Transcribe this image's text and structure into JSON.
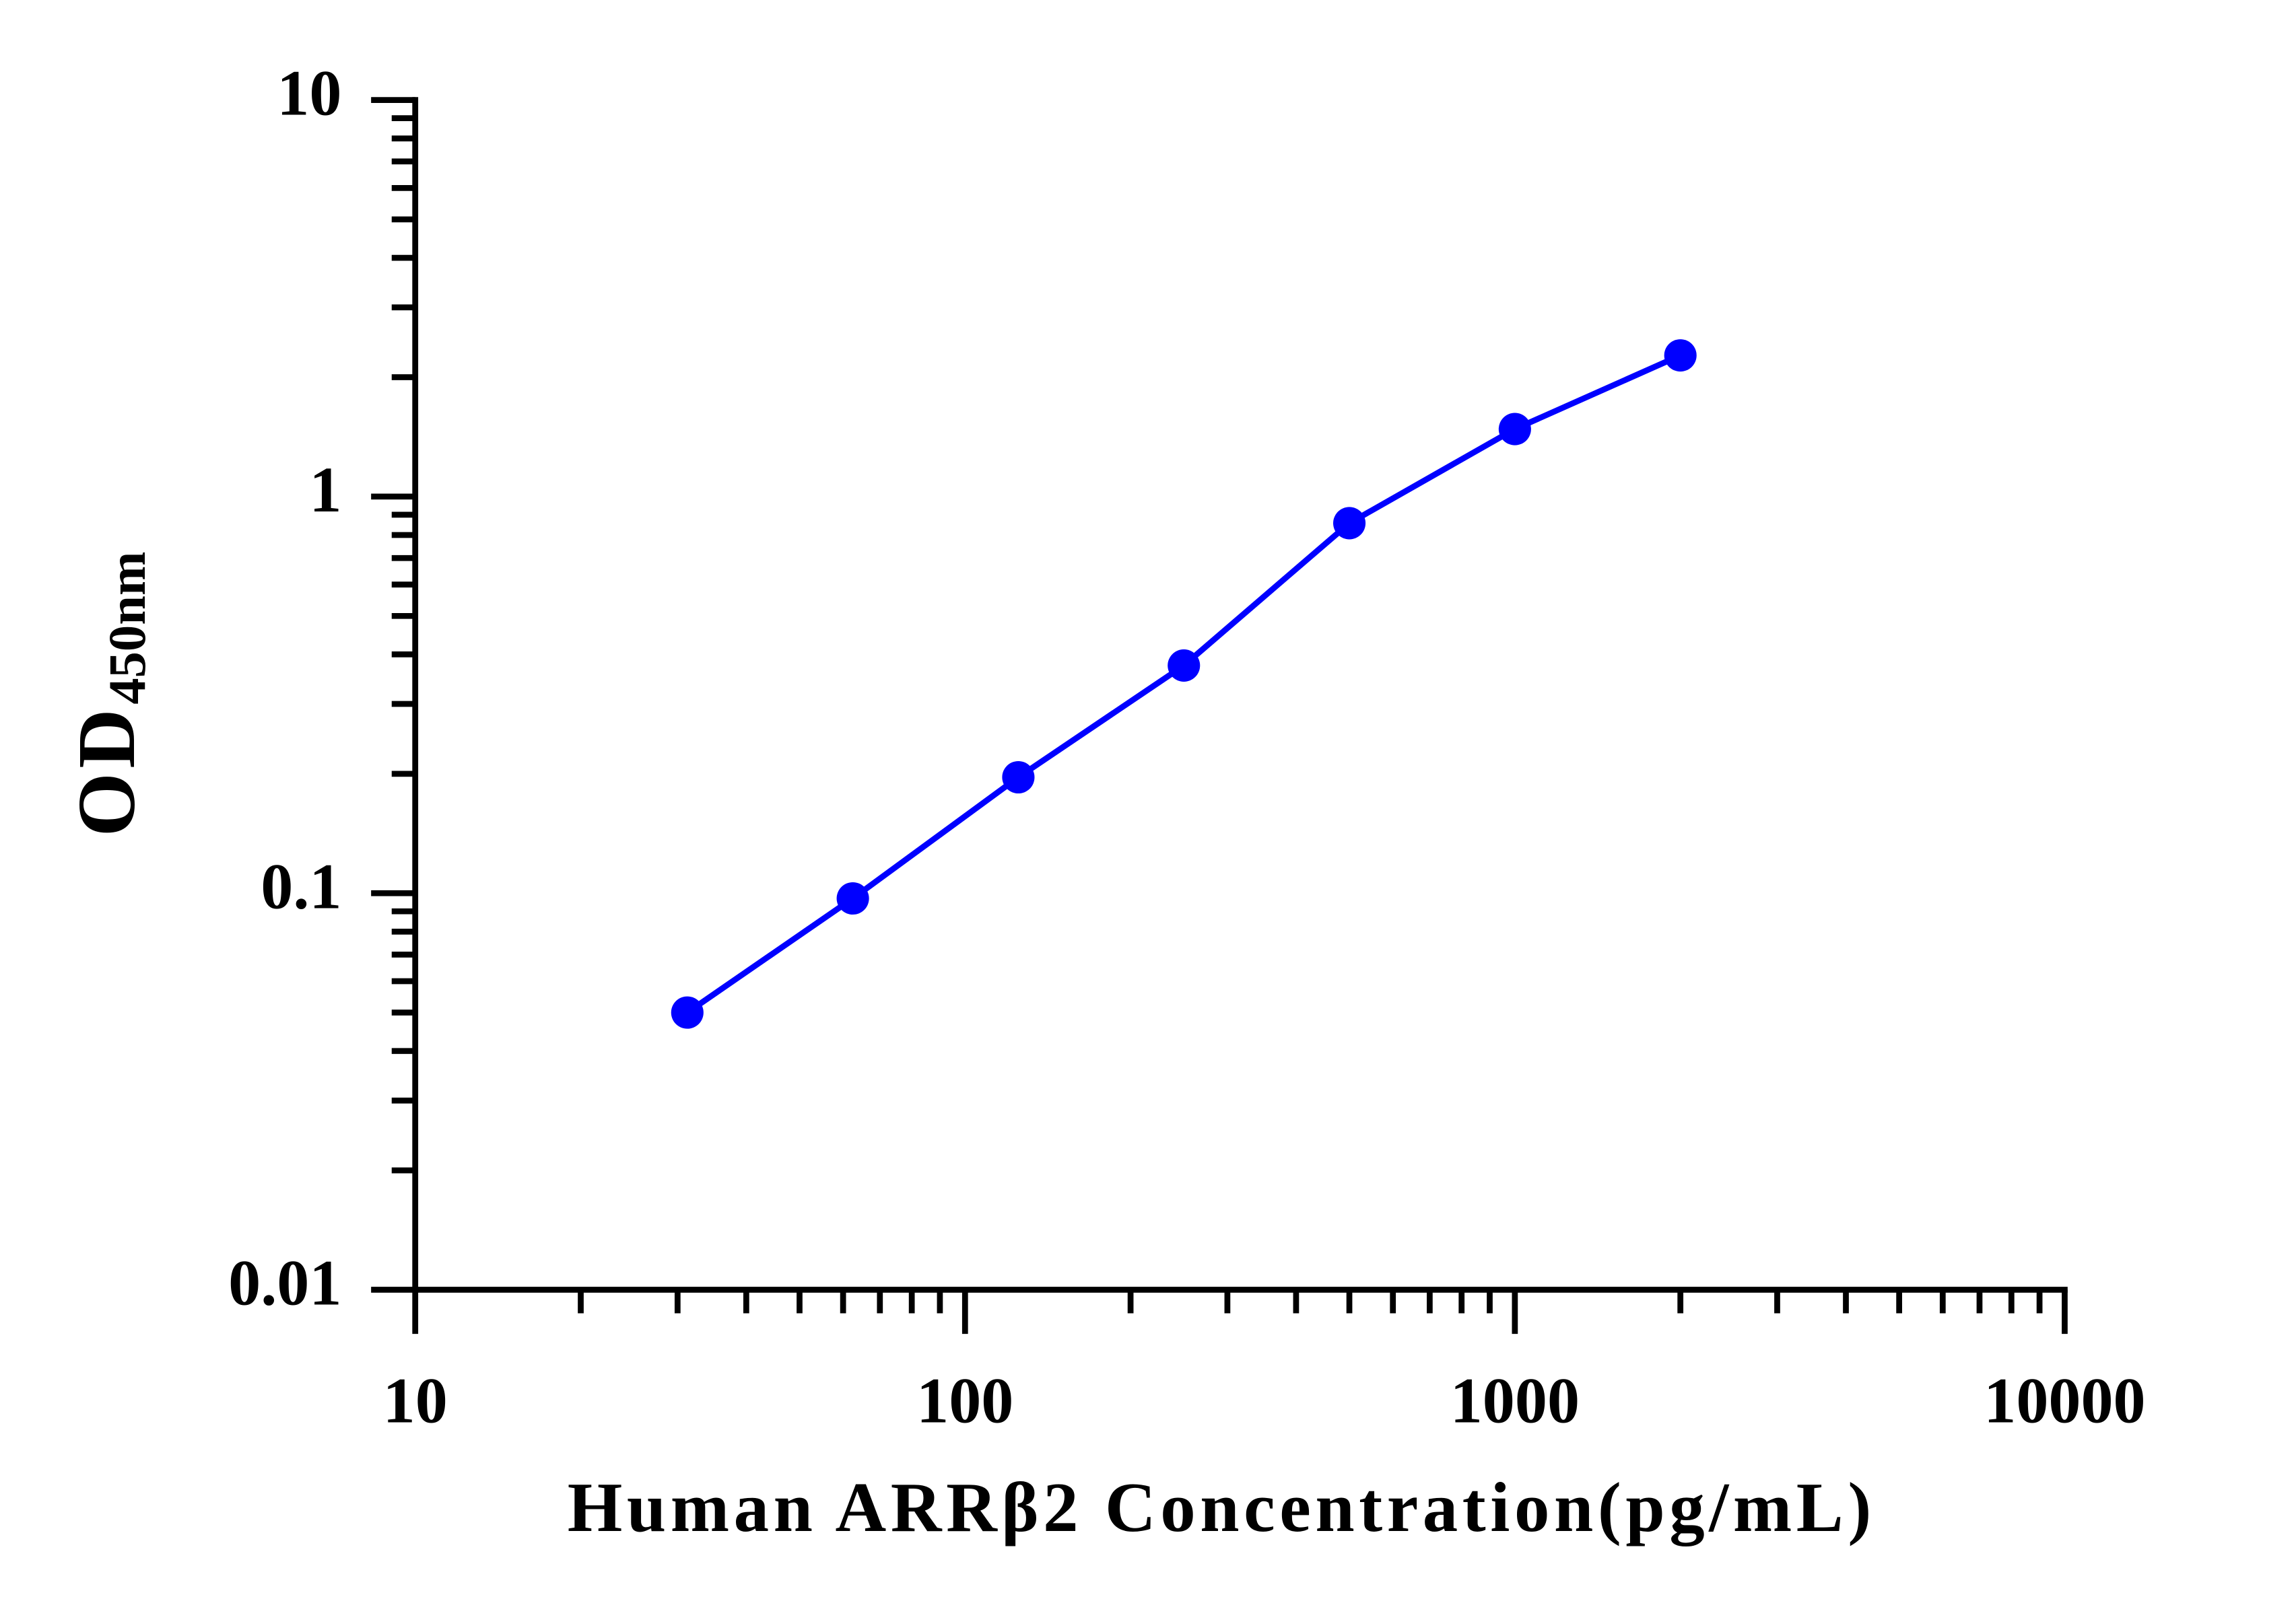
{
  "chart_data": {
    "type": "line",
    "x_label": "Human ARRβ2 Concentration(pg/mL)",
    "y_label": "OD",
    "y_label_subscript": "450nm",
    "x": [
      31.25,
      62.5,
      125,
      250,
      500,
      1000,
      2000
    ],
    "series": [
      {
        "color": "#0000ff",
        "values": [
          0.05,
          0.097,
          0.196,
          0.375,
          0.857,
          1.48,
          2.27
        ]
      }
    ],
    "xlim": [
      10,
      10000
    ],
    "xticks": [
      10,
      100,
      1000,
      10000
    ],
    "ylim": [
      0.01,
      10
    ],
    "yticks": [
      0.01,
      0.1,
      1,
      10
    ],
    "xscale": "log",
    "yscale": "log",
    "grid": false
  }
}
